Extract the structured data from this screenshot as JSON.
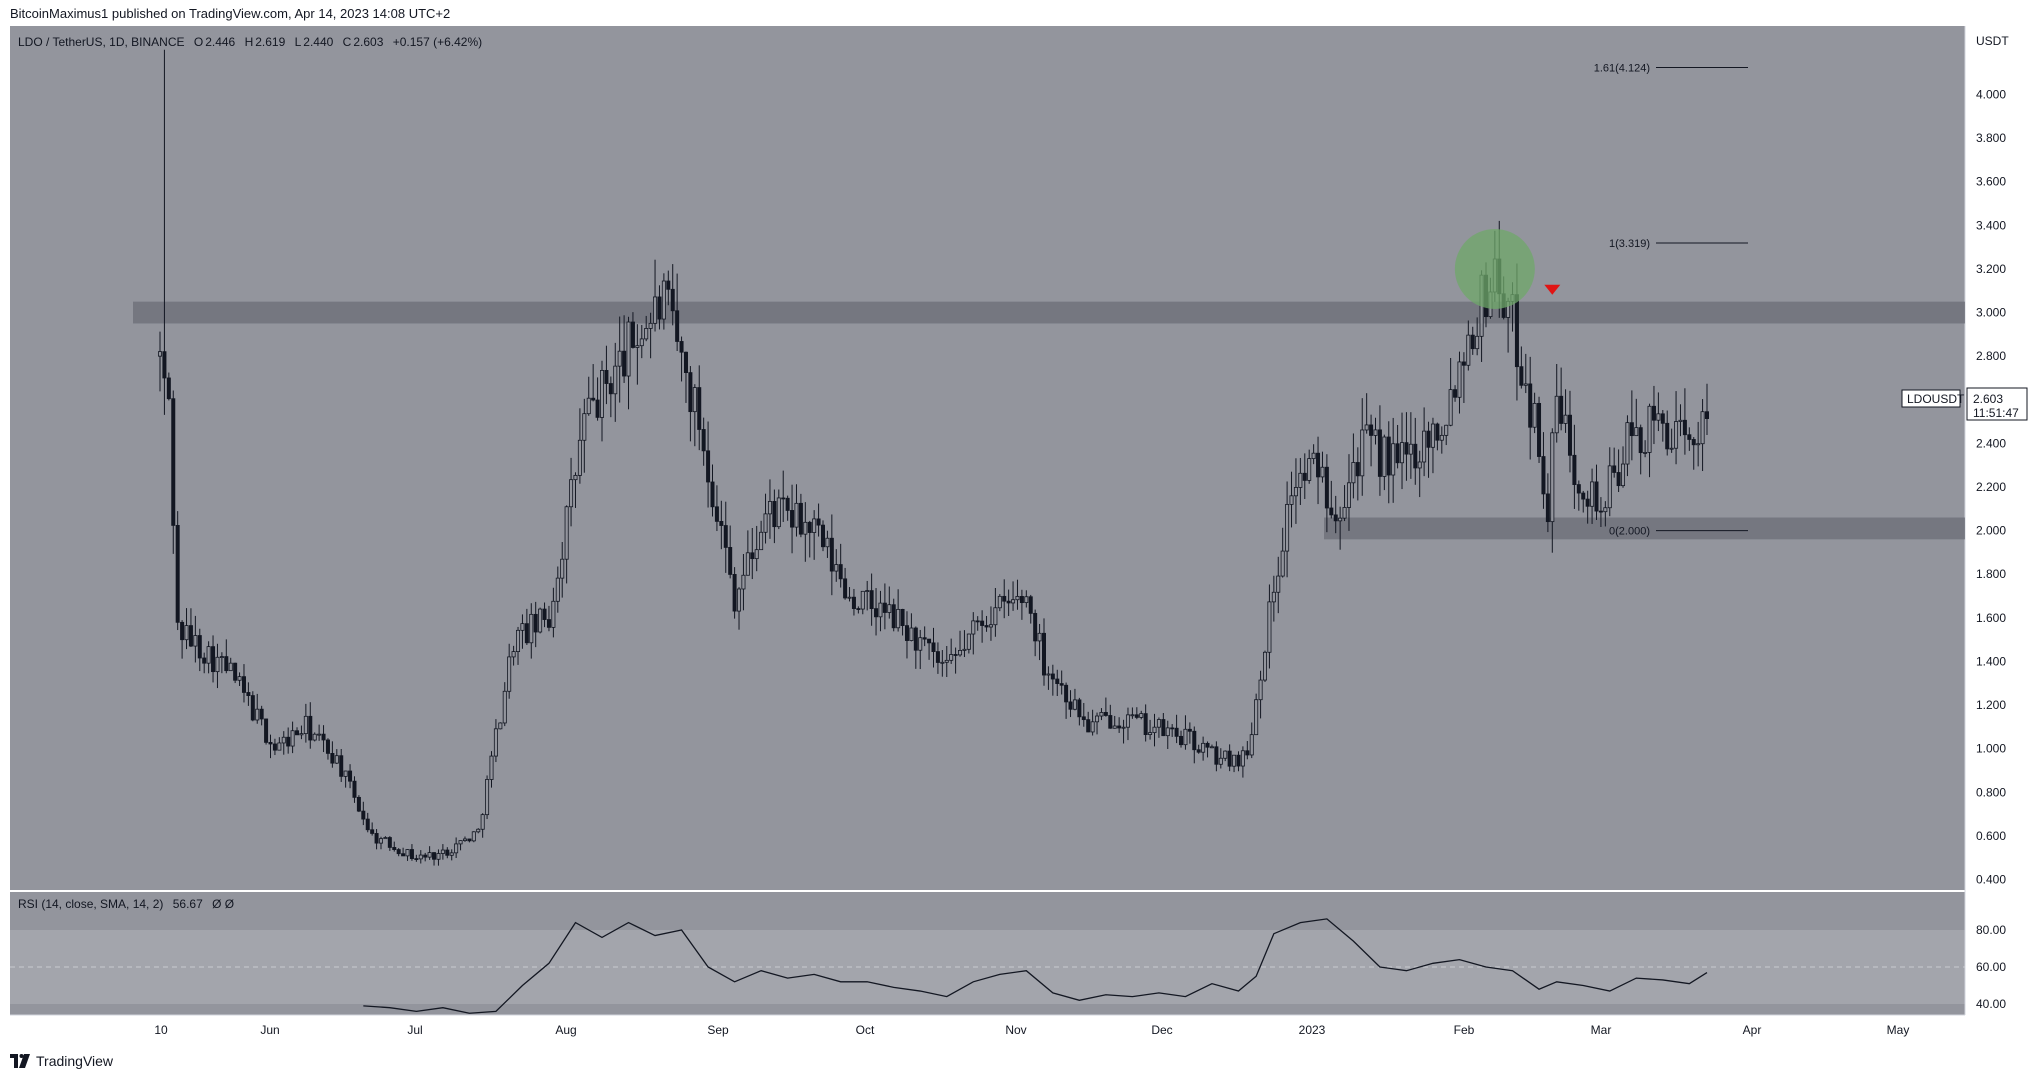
{
  "header": {
    "author": "BitcoinMaximus1",
    "published_text": "published on TradingView.com, Apr 14, 2023 14:08 UTC+2"
  },
  "symbol_line": {
    "symbol": "LDO / TetherUS, 1D, BINANCE",
    "open_label": "O",
    "open": "2.446",
    "high_label": "H",
    "high": "2.619",
    "low_label": "L",
    "low": "2.440",
    "close_label": "C",
    "close": "2.603",
    "change": "+0.157 (+6.42%)"
  },
  "price_scale": {
    "currency": "USDT"
  },
  "last_price": {
    "ticker": "LDOUSDT",
    "price": "2.603",
    "countdown": "11:51:47"
  },
  "fib_levels": [
    {
      "label": "1.61(4.124)",
      "value": 4.124
    },
    {
      "label": "1(3.319)",
      "value": 3.319
    },
    {
      "label": "0(2.000)",
      "value": 2.0
    }
  ],
  "rsi_panel": {
    "label": "RSI (14, close, SMA, 14, 2)",
    "value": "56.67",
    "extra": "Ø  Ø",
    "ticks": [
      "80.00",
      "60.00",
      "40.00"
    ]
  },
  "x_axis": [
    "10",
    "Jun",
    "Jul",
    "Aug",
    "Sep",
    "Oct",
    "Nov",
    "Dec",
    "2023",
    "Feb",
    "Mar",
    "Apr",
    "May"
  ],
  "footer": {
    "brand": "TradingView"
  },
  "colors": {
    "plot_bg": "#93959d",
    "candle": "#131722",
    "zone": "#6b6e77",
    "highlight_circle": "#6fa86a",
    "marker": "#e01414"
  },
  "chart_data": {
    "type": "candlestick",
    "title": "LDO / TetherUS, 1D, BINANCE",
    "ylim": [
      0.4,
      4.2
    ],
    "y_ticks": [
      4.0,
      3.8,
      3.6,
      3.4,
      3.2,
      3.0,
      2.8,
      2.6,
      2.4,
      2.2,
      2.0,
      1.8,
      1.6,
      1.4,
      1.2,
      1.0,
      0.8,
      0.6,
      0.4
    ],
    "y_tick_labels": [
      "4.000",
      "3.800",
      "3.600",
      "3.400",
      "3.200",
      "3.000",
      "2.800",
      "2.600",
      "2.400",
      "2.200",
      "2.000",
      "1.800",
      "1.600",
      "1.400",
      "1.200",
      "1.000",
      "0.800",
      "0.600",
      "0.400"
    ],
    "resistance_zone": [
      2.95,
      3.05
    ],
    "support_zone": [
      1.96,
      2.06
    ],
    "highlight_circle_center": {
      "date_index": 302,
      "price": 3.2
    },
    "bearish_marker": {
      "date_index": 315,
      "price": 3.1
    },
    "price_path": [
      [
        0,
        2.8
      ],
      [
        1,
        3.89
      ],
      [
        2,
        2.6
      ],
      [
        4,
        1.55
      ],
      [
        10,
        1.45
      ],
      [
        16,
        1.35
      ],
      [
        26,
        1.0
      ],
      [
        33,
        1.1
      ],
      [
        40,
        0.95
      ],
      [
        48,
        0.6
      ],
      [
        58,
        0.5
      ],
      [
        64,
        0.52
      ],
      [
        72,
        0.62
      ],
      [
        80,
        1.5
      ],
      [
        88,
        1.6
      ],
      [
        96,
        2.5
      ],
      [
        108,
        2.9
      ],
      [
        114,
        3.05
      ],
      [
        122,
        2.5
      ],
      [
        130,
        1.7
      ],
      [
        138,
        2.1
      ],
      [
        148,
        2.0
      ],
      [
        156,
        1.7
      ],
      [
        166,
        1.6
      ],
      [
        178,
        1.35
      ],
      [
        186,
        1.6
      ],
      [
        196,
        1.7
      ],
      [
        200,
        1.4
      ],
      [
        210,
        1.1
      ],
      [
        216,
        1.15
      ],
      [
        224,
        1.1
      ],
      [
        232,
        1.05
      ],
      [
        240,
        0.95
      ],
      [
        246,
        0.97
      ],
      [
        250,
        1.5
      ],
      [
        256,
        2.2
      ],
      [
        262,
        2.3
      ],
      [
        266,
        2.1
      ],
      [
        272,
        2.4
      ],
      [
        280,
        2.3
      ],
      [
        290,
        2.5
      ],
      [
        296,
        2.9
      ],
      [
        302,
        3.2
      ],
      [
        306,
        2.95
      ],
      [
        312,
        2.4
      ],
      [
        314,
        2.1
      ],
      [
        316,
        2.6
      ],
      [
        320,
        2.3
      ],
      [
        326,
        2.1
      ],
      [
        332,
        2.4
      ],
      [
        340,
        2.5
      ],
      [
        346,
        2.35
      ],
      [
        350,
        2.6
      ]
    ],
    "series": [
      {
        "name": "RSI",
        "ylim": [
          30,
          90
        ],
        "values": [
          [
            46,
            39
          ],
          [
            52,
            38
          ],
          [
            58,
            36
          ],
          [
            64,
            38
          ],
          [
            70,
            35
          ],
          [
            76,
            36
          ],
          [
            82,
            50
          ],
          [
            88,
            62
          ],
          [
            94,
            84
          ],
          [
            100,
            76
          ],
          [
            106,
            84
          ],
          [
            112,
            77
          ],
          [
            118,
            80
          ],
          [
            124,
            60
          ],
          [
            130,
            52
          ],
          [
            136,
            58
          ],
          [
            142,
            54
          ],
          [
            148,
            56
          ],
          [
            154,
            52
          ],
          [
            160,
            52
          ],
          [
            166,
            49
          ],
          [
            172,
            47
          ],
          [
            178,
            44
          ],
          [
            184,
            52
          ],
          [
            190,
            56
          ],
          [
            196,
            58
          ],
          [
            202,
            46
          ],
          [
            208,
            42
          ],
          [
            214,
            45
          ],
          [
            220,
            44
          ],
          [
            226,
            46
          ],
          [
            232,
            44
          ],
          [
            238,
            51
          ],
          [
            244,
            47
          ],
          [
            248,
            55
          ],
          [
            252,
            78
          ],
          [
            258,
            84
          ],
          [
            264,
            86
          ],
          [
            270,
            74
          ],
          [
            276,
            60
          ],
          [
            282,
            58
          ],
          [
            288,
            62
          ],
          [
            294,
            64
          ],
          [
            300,
            60
          ],
          [
            306,
            58
          ],
          [
            312,
            48
          ],
          [
            316,
            52
          ],
          [
            322,
            50
          ],
          [
            328,
            47
          ],
          [
            334,
            54
          ],
          [
            340,
            53
          ],
          [
            346,
            51
          ],
          [
            350,
            57
          ]
        ]
      }
    ]
  }
}
